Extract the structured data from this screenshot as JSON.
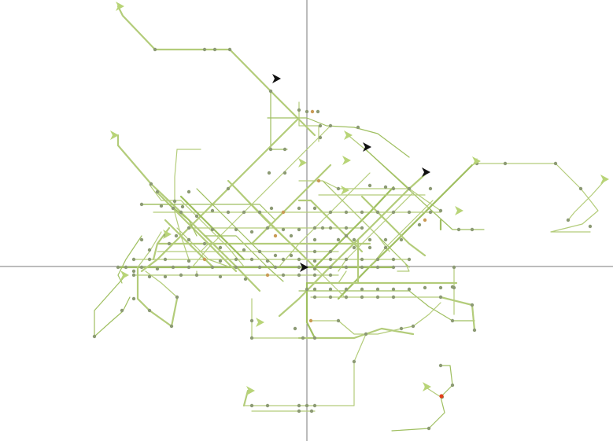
{
  "colors": {
    "background": "#ffffff",
    "axis": "#7a7a7a",
    "route": "#b3cc7a",
    "route_dark": "#9fbf60",
    "node": "#8c9a74",
    "node_orange": "#c99a55",
    "node_red": "#e0401a",
    "arrow_green": "#b8d477",
    "arrow_black": "#111111"
  },
  "legend": [],
  "icons": {
    "direction_marker_green": "triangle-arrow-green-icon",
    "direction_marker_black": "triangle-arrow-black-icon"
  }
}
